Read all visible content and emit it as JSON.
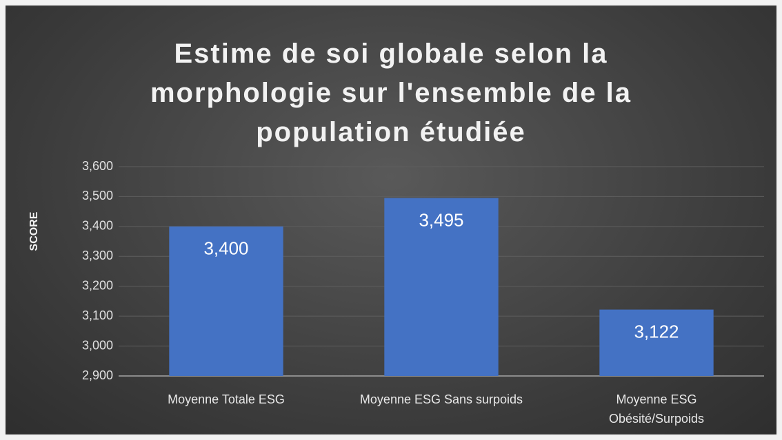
{
  "chart_data": {
    "type": "bar",
    "title": "Estime de soi globale selon la morphologie sur l'ensemble de la population étudiée",
    "y_label": "SCORE",
    "categories": [
      "Moyenne Totale ESG",
      "Moyenne ESG Sans surpoids",
      "Moyenne ESG Obésité/Surpoids"
    ],
    "values": [
      3.4,
      3.495,
      3.122
    ],
    "value_labels": [
      "3,400",
      "3,495",
      "3,122"
    ],
    "color": "#4472c4",
    "ylim": [
      2.9,
      3.6
    ],
    "yticks": [
      {
        "value": 2.9,
        "label": "2,900"
      },
      {
        "value": 3.0,
        "label": "3,000"
      },
      {
        "value": 3.1,
        "label": "3,100"
      },
      {
        "value": 3.2,
        "label": "3,200"
      },
      {
        "value": 3.3,
        "label": "3,300"
      },
      {
        "value": 3.4,
        "label": "3,400"
      },
      {
        "value": 3.5,
        "label": "3,500"
      },
      {
        "value": 3.6,
        "label": "3,600"
      }
    ],
    "grid": true
  }
}
